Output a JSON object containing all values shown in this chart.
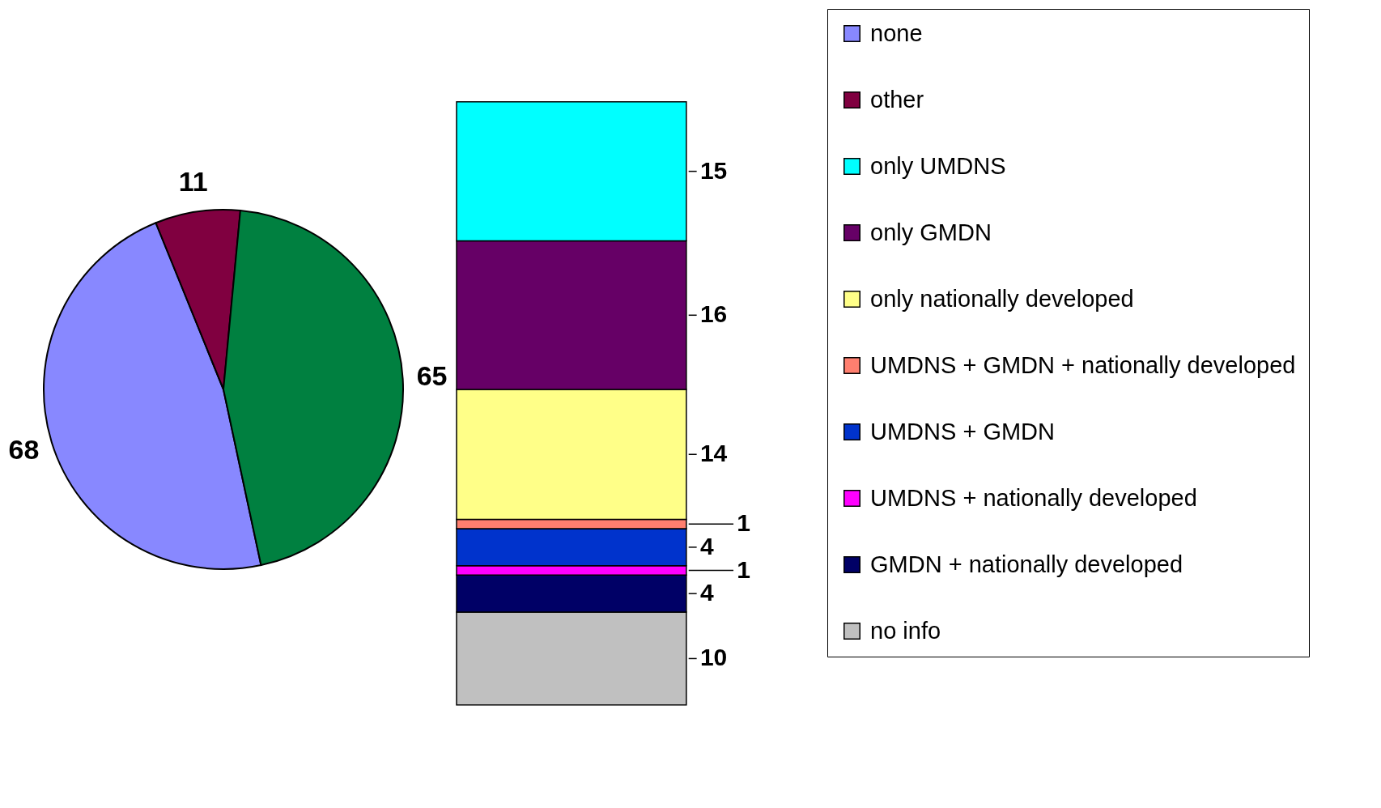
{
  "chart_data": [
    {
      "type": "pie",
      "categories": [
        "none",
        "other",
        null
      ],
      "values": [
        68,
        11,
        65
      ],
      "colors": [
        "#8888ff",
        "#800040",
        "#008040"
      ],
      "data_labels": true,
      "legend": "right"
    },
    {
      "type": "bar",
      "stacked": true,
      "categories": [
        null
      ],
      "data_labels": true,
      "legend": "right",
      "series": [
        {
          "name": "no info",
          "color": "#c0c0c0",
          "values": [
            10
          ]
        },
        {
          "name": "GMDN + nationally developed",
          "color": "#000066",
          "values": [
            4
          ]
        },
        {
          "name": "UMDNS + nationally developed",
          "color": "#ff00ff",
          "values": [
            1
          ]
        },
        {
          "name": "UMDNS + GMDN",
          "color": "#0033cc",
          "values": [
            4
          ]
        },
        {
          "name": "UMDNS + GMDN + nationally developed",
          "color": "#ff7f6f",
          "values": [
            1
          ]
        },
        {
          "name": "only nationally developed",
          "color": "#ffff88",
          "values": [
            14
          ]
        },
        {
          "name": "only GMDN",
          "color": "#660066",
          "values": [
            16
          ]
        },
        {
          "name": "only UMDNS",
          "color": "#00ffff",
          "values": [
            15
          ]
        }
      ]
    }
  ]
}
